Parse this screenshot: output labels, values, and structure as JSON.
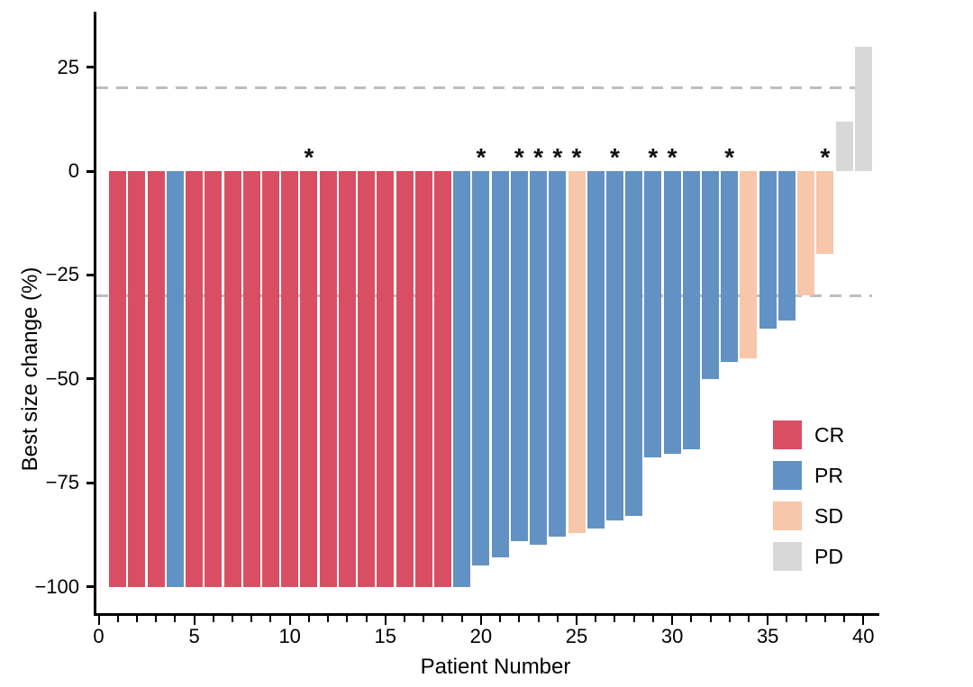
{
  "chart_data": {
    "type": "bar",
    "subtype": "waterfall",
    "title": "",
    "xlabel": "Patient Number",
    "ylabel": "Best size change (%)",
    "xlim": [
      0,
      40.8
    ],
    "ylim": [
      -106,
      38
    ],
    "grid": false,
    "x_major_ticks": [
      0,
      5,
      10,
      15,
      20,
      25,
      30,
      35,
      40
    ],
    "x_minor_tick_step": 1,
    "x_max_tick": 40,
    "y_ticks": [
      {
        "value": 25,
        "label": "25"
      },
      {
        "value": 0,
        "label": "0"
      },
      {
        "value": -25,
        "label": "−25"
      },
      {
        "value": -50,
        "label": "−50"
      },
      {
        "value": -75,
        "label": "−75"
      },
      {
        "value": -100,
        "label": "−100"
      }
    ],
    "reference_lines": [
      {
        "value": 20,
        "style": "dashed",
        "color": "#BEBEBE"
      },
      {
        "value": -30,
        "style": "dashed",
        "color": "#BEBEBE"
      }
    ],
    "annotation_glyph": "*",
    "legend": {
      "position": "right-lower",
      "entries": [
        {
          "label": "CR",
          "color": "#DA4E63"
        },
        {
          "label": "PR",
          "color": "#6292C3"
        },
        {
          "label": "SD",
          "color": "#F8C6A8"
        },
        {
          "label": "PD",
          "color": "#D8D8D8"
        }
      ]
    },
    "series": [
      {
        "patient": 1,
        "value": -100,
        "response": "CR",
        "annotated": false
      },
      {
        "patient": 2,
        "value": -100,
        "response": "CR",
        "annotated": false
      },
      {
        "patient": 3,
        "value": -100,
        "response": "CR",
        "annotated": false
      },
      {
        "patient": 4,
        "value": -100,
        "response": "PR",
        "annotated": false
      },
      {
        "patient": 5,
        "value": -100,
        "response": "CR",
        "annotated": false
      },
      {
        "patient": 6,
        "value": -100,
        "response": "CR",
        "annotated": false
      },
      {
        "patient": 7,
        "value": -100,
        "response": "CR",
        "annotated": false
      },
      {
        "patient": 8,
        "value": -100,
        "response": "CR",
        "annotated": false
      },
      {
        "patient": 9,
        "value": -100,
        "response": "CR",
        "annotated": false
      },
      {
        "patient": 10,
        "value": -100,
        "response": "CR",
        "annotated": false
      },
      {
        "patient": 11,
        "value": -100,
        "response": "CR",
        "annotated": true
      },
      {
        "patient": 12,
        "value": -100,
        "response": "CR",
        "annotated": false
      },
      {
        "patient": 13,
        "value": -100,
        "response": "CR",
        "annotated": false
      },
      {
        "patient": 14,
        "value": -100,
        "response": "CR",
        "annotated": false
      },
      {
        "patient": 15,
        "value": -100,
        "response": "CR",
        "annotated": false
      },
      {
        "patient": 16,
        "value": -100,
        "response": "CR",
        "annotated": false
      },
      {
        "patient": 17,
        "value": -100,
        "response": "CR",
        "annotated": false
      },
      {
        "patient": 18,
        "value": -100,
        "response": "CR",
        "annotated": false
      },
      {
        "patient": 19,
        "value": -100,
        "response": "PR",
        "annotated": false
      },
      {
        "patient": 20,
        "value": -95,
        "response": "PR",
        "annotated": true
      },
      {
        "patient": 21,
        "value": -93,
        "response": "PR",
        "annotated": false
      },
      {
        "patient": 22,
        "value": -89,
        "response": "PR",
        "annotated": true
      },
      {
        "patient": 23,
        "value": -90,
        "response": "PR",
        "annotated": true
      },
      {
        "patient": 24,
        "value": -88,
        "response": "PR",
        "annotated": true
      },
      {
        "patient": 25,
        "value": -87,
        "response": "SD",
        "annotated": true
      },
      {
        "patient": 26,
        "value": -86,
        "response": "PR",
        "annotated": false
      },
      {
        "patient": 27,
        "value": -84,
        "response": "PR",
        "annotated": true
      },
      {
        "patient": 28,
        "value": -83,
        "response": "PR",
        "annotated": false
      },
      {
        "patient": 29,
        "value": -69,
        "response": "PR",
        "annotated": true
      },
      {
        "patient": 30,
        "value": -68,
        "response": "PR",
        "annotated": true
      },
      {
        "patient": 31,
        "value": -67,
        "response": "PR",
        "annotated": false
      },
      {
        "patient": 32,
        "value": -50,
        "response": "PR",
        "annotated": false
      },
      {
        "patient": 33,
        "value": -46,
        "response": "PR",
        "annotated": true
      },
      {
        "patient": 34,
        "value": -45,
        "response": "SD",
        "annotated": false
      },
      {
        "patient": 35,
        "value": -38,
        "response": "PR",
        "annotated": false
      },
      {
        "patient": 36,
        "value": -36,
        "response": "PR",
        "annotated": false
      },
      {
        "patient": 37,
        "value": -30,
        "response": "SD",
        "annotated": false
      },
      {
        "patient": 38,
        "value": -20,
        "response": "SD",
        "annotated": true
      },
      {
        "patient": 39,
        "value": 12,
        "response": "PD",
        "annotated": false
      },
      {
        "patient": 40,
        "value": 30,
        "response": "PD",
        "annotated": false
      }
    ]
  }
}
